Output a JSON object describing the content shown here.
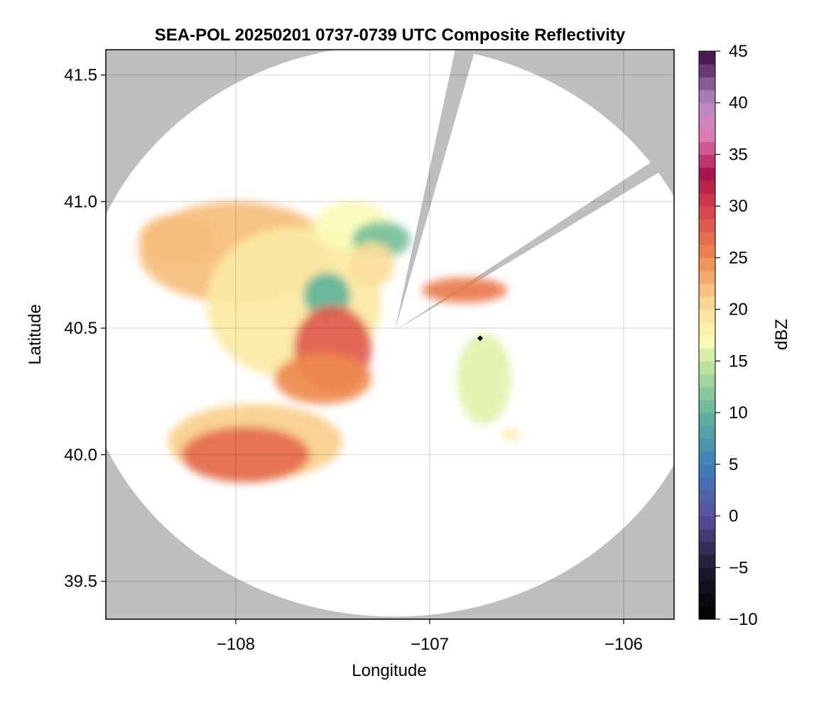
{
  "chart_data": {
    "type": "heatmap",
    "title": "SEA-POL 20250201 0737-0739 UTC Composite Reflectivity",
    "xlabel": "Longitude",
    "ylabel": "Latitude",
    "xlim": [
      -108.67,
      -105.74
    ],
    "ylim": [
      39.35,
      41.6
    ],
    "xticks": [
      -108,
      -107,
      -106
    ],
    "xtick_labels": [
      "−108",
      "−107",
      "−106"
    ],
    "yticks": [
      39.5,
      40.0,
      40.5,
      41.0,
      41.5
    ],
    "ytick_labels": [
      "39.5",
      "40.0",
      "40.5",
      "41.0",
      "41.5"
    ],
    "grid": true,
    "background_color": "#bebebe",
    "radar": {
      "site_lon": -107.18,
      "site_lat": 40.49,
      "range_lon_halfwidth": 1.63,
      "range_lat_halfwidth": 1.13,
      "blocked_sectors": [
        {
          "start_lon": -106.84,
          "start_lat": 41.53,
          "end_lon": -107.05,
          "end_lat": 40.98
        },
        {
          "start_lon": -106.06,
          "start_lat": 41.11,
          "end_lon": -106.63,
          "end_lat": 40.77
        }
      ]
    },
    "marker": {
      "lon": -106.74,
      "lat": 40.46,
      "symbol": "diamond",
      "color": "#000000"
    },
    "colorbar": {
      "label": "dBZ",
      "min": -10,
      "max": 45,
      "ticks": [
        -10,
        -5,
        0,
        5,
        10,
        15,
        20,
        25,
        30,
        35,
        40,
        45
      ],
      "tick_labels": [
        "−10",
        "−5",
        "0",
        "5",
        "10",
        "15",
        "20",
        "25",
        "30",
        "35",
        "40",
        "45"
      ],
      "colormap": "spectral_extended",
      "stops": [
        [
          -10,
          "#000000"
        ],
        [
          -5,
          "#1e1a2e"
        ],
        [
          0,
          "#5a4fa0"
        ],
        [
          5,
          "#3e7fb9"
        ],
        [
          10,
          "#62b59a"
        ],
        [
          15,
          "#c7e89c"
        ],
        [
          17,
          "#fafbb6"
        ],
        [
          20,
          "#fbe09a"
        ],
        [
          25,
          "#ef8a4f"
        ],
        [
          30,
          "#d53e4f"
        ],
        [
          33,
          "#a8124a"
        ],
        [
          37,
          "#e07fb4"
        ],
        [
          40,
          "#b58cc4"
        ],
        [
          45,
          "#3b0a45"
        ]
      ]
    },
    "echo_regions": [
      {
        "name": "northwest band",
        "lon": -108.0,
        "lat": 40.8,
        "dlon": 0.5,
        "dlat": 0.2,
        "dbz": 22
      },
      {
        "name": "northwest edge",
        "lon": -108.3,
        "lat": 40.85,
        "dlon": 0.2,
        "dlat": 0.1,
        "dbz": 22
      },
      {
        "name": "central band",
        "lon": -107.7,
        "lat": 40.6,
        "dlon": 0.45,
        "dlat": 0.3,
        "dbz": 19
      },
      {
        "name": "northern cells",
        "lon": -107.4,
        "lat": 40.9,
        "dlon": 0.2,
        "dlat": 0.1,
        "dbz": 17
      },
      {
        "name": "weak core north",
        "lon": -107.25,
        "lat": 40.85,
        "dlon": 0.15,
        "dlat": 0.07,
        "dbz": 11
      },
      {
        "name": "weak core central",
        "lon": -107.53,
        "lat": 40.63,
        "dlon": 0.12,
        "dlat": 0.09,
        "dbz": 10
      },
      {
        "name": "central core",
        "lon": -107.5,
        "lat": 40.42,
        "dlon": 0.2,
        "dlat": 0.17,
        "dbz": 28
      },
      {
        "name": "central strip",
        "lon": -107.55,
        "lat": 40.3,
        "dlon": 0.25,
        "dlat": 0.1,
        "dbz": 25
      },
      {
        "name": "near-site fringe",
        "lon": -107.3,
        "lat": 40.75,
        "dlon": 0.12,
        "dlat": 0.09,
        "dbz": 20
      },
      {
        "name": "southwest band",
        "lon": -107.9,
        "lat": 40.05,
        "dlon": 0.45,
        "dlat": 0.15,
        "dbz": 21
      },
      {
        "name": "southwest core",
        "lon": -107.95,
        "lat": 40.0,
        "dlon": 0.33,
        "dlat": 0.11,
        "dbz": 27
      },
      {
        "name": "eastern cell",
        "lon": -106.72,
        "lat": 40.3,
        "dlon": 0.14,
        "dlat": 0.18,
        "dbz": 16
      },
      {
        "name": "northeast line",
        "lon": -106.82,
        "lat": 40.65,
        "dlon": 0.22,
        "dlat": 0.05,
        "dbz": 26
      },
      {
        "name": "southeast cell",
        "lon": -106.58,
        "lat": 40.08,
        "dlon": 0.05,
        "dlat": 0.02,
        "dbz": 19
      }
    ]
  }
}
